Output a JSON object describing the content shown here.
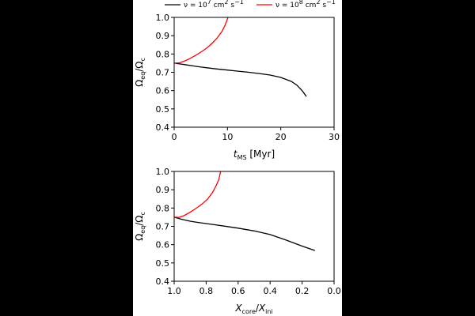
{
  "legend": {
    "entries": [
      {
        "label_prefix": "ν = 10",
        "exp": "7",
        "unit_a": "cm",
        "unit_a_exp": "2",
        "unit_b": "s",
        "unit_b_exp": "−1",
        "color": "#000000"
      },
      {
        "label_prefix": "ν = 10",
        "exp": "8",
        "unit_a": "cm",
        "unit_a_exp": "2",
        "unit_b": "s",
        "unit_b_exp": "−1",
        "color": "#ff0000"
      }
    ]
  },
  "chart_data": [
    {
      "type": "line",
      "ylabel": {
        "base1": "Ω",
        "sub1": "eq",
        "sep": "/",
        "base2": "Ω",
        "sub2": "c"
      },
      "xlabel": {
        "base": "t",
        "sub": "MS",
        "unit": " [Myr]"
      },
      "xlim": [
        0,
        30
      ],
      "ylim": [
        0.4,
        1.0
      ],
      "xticks": [
        0,
        10,
        20,
        30
      ],
      "yticks": [
        0.4,
        0.5,
        0.6,
        0.7,
        0.8,
        0.9,
        1.0
      ],
      "series": [
        {
          "name": "ν = 10^7 cm^2 s^-1",
          "color": "#000000",
          "x": [
            0,
            2,
            4,
            6,
            8,
            10,
            12,
            14,
            16,
            18,
            20,
            22,
            23,
            24,
            24.8
          ],
          "y": [
            0.75,
            0.742,
            0.733,
            0.725,
            0.718,
            0.712,
            0.706,
            0.7,
            0.693,
            0.685,
            0.672,
            0.65,
            0.63,
            0.6,
            0.568
          ]
        },
        {
          "name": "ν = 10^8 cm^2 s^-1",
          "color": "#ff0000",
          "x": [
            0,
            1,
            2,
            3,
            4,
            5,
            6,
            7,
            8,
            9,
            9.6,
            10.1
          ],
          "y": [
            0.75,
            0.752,
            0.762,
            0.776,
            0.792,
            0.81,
            0.83,
            0.855,
            0.885,
            0.925,
            0.96,
            1.0
          ]
        }
      ]
    },
    {
      "type": "line",
      "ylabel": {
        "base1": "Ω",
        "sub1": "eq",
        "sep": "/",
        "base2": "Ω",
        "sub2": "c"
      },
      "xlabel": {
        "base": "X",
        "sub": "core",
        "sep": "/",
        "base2": "X",
        "sub2": "ini"
      },
      "xlim": [
        1.0,
        0.0
      ],
      "ylim": [
        0.4,
        1.0
      ],
      "xticks": [
        1.0,
        0.8,
        0.6,
        0.4,
        0.2,
        0.0
      ],
      "yticks": [
        0.4,
        0.5,
        0.6,
        0.7,
        0.8,
        0.9,
        1.0
      ],
      "series": [
        {
          "name": "ν = 10^7 cm^2 s^-1",
          "color": "#000000",
          "x": [
            1.0,
            0.95,
            0.9,
            0.85,
            0.8,
            0.75,
            0.7,
            0.6,
            0.5,
            0.4,
            0.3,
            0.2,
            0.12
          ],
          "y": [
            0.75,
            0.738,
            0.728,
            0.721,
            0.715,
            0.709,
            0.703,
            0.69,
            0.675,
            0.655,
            0.625,
            0.592,
            0.568
          ]
        },
        {
          "name": "ν = 10^8 cm^2 s^-1",
          "color": "#ff0000",
          "x": [
            1.0,
            0.97,
            0.94,
            0.91,
            0.88,
            0.85,
            0.82,
            0.79,
            0.76,
            0.74,
            0.72,
            0.71
          ],
          "y": [
            0.75,
            0.749,
            0.758,
            0.772,
            0.788,
            0.806,
            0.826,
            0.85,
            0.885,
            0.918,
            0.958,
            1.0
          ]
        }
      ]
    }
  ]
}
